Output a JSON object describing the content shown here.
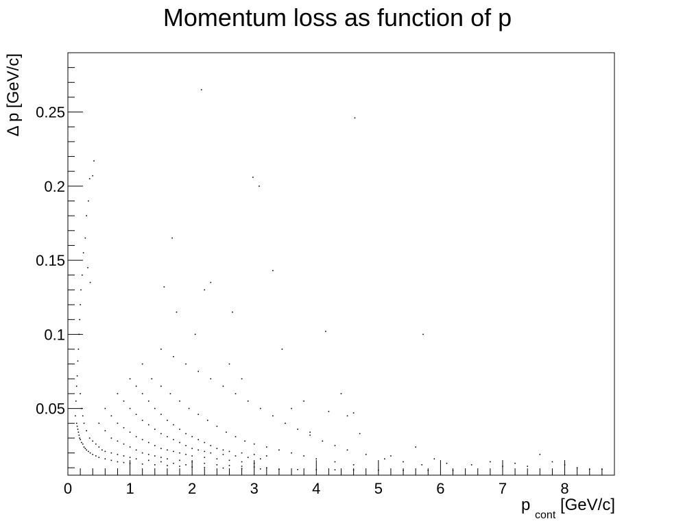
{
  "chart_data": {
    "type": "scatter",
    "title": "Momentum loss as function of p",
    "xlabel_main": "p",
    "xlabel_sub": "cont",
    "xlabel_unit": " [GeV/c]",
    "ylabel": "Δ p [GeV/c]",
    "xlim": [
      0,
      8.8
    ],
    "ylim": [
      0.005,
      0.29
    ],
    "grid": false,
    "legend": "none",
    "x_ticks": [
      {
        "value": 0,
        "label": "0"
      },
      {
        "value": 1,
        "label": "1"
      },
      {
        "value": 2,
        "label": "2"
      },
      {
        "value": 3,
        "label": "3"
      },
      {
        "value": 4,
        "label": "4"
      },
      {
        "value": 5,
        "label": "5"
      },
      {
        "value": 6,
        "label": "6"
      },
      {
        "value": 7,
        "label": "7"
      },
      {
        "value": 8,
        "label": "8"
      }
    ],
    "y_ticks": [
      {
        "value": 0.05,
        "label": "0.05"
      },
      {
        "value": 0.1,
        "label": "0.1"
      },
      {
        "value": 0.15,
        "label": "0.15"
      },
      {
        "value": 0.2,
        "label": "0.2"
      },
      {
        "value": 0.25,
        "label": "0.25"
      }
    ],
    "series": [
      {
        "marker_color": "#000000",
        "points": [
          [
            0.12,
            0.045
          ],
          [
            0.13,
            0.055
          ],
          [
            0.14,
            0.065
          ],
          [
            0.15,
            0.072
          ],
          [
            0.16,
            0.082
          ],
          [
            0.17,
            0.09
          ],
          [
            0.18,
            0.1
          ],
          [
            0.19,
            0.11
          ],
          [
            0.2,
            0.12
          ],
          [
            0.21,
            0.13
          ],
          [
            0.23,
            0.14
          ],
          [
            0.25,
            0.155
          ],
          [
            0.28,
            0.165
          ],
          [
            0.3,
            0.18
          ],
          [
            0.33,
            0.19
          ],
          [
            0.35,
            0.205
          ],
          [
            0.4,
            0.207
          ],
          [
            0.42,
            0.217
          ],
          [
            0.32,
            0.145
          ],
          [
            0.36,
            0.135
          ],
          [
            0.14,
            0.04
          ],
          [
            0.15,
            0.038
          ],
          [
            0.16,
            0.036
          ],
          [
            0.17,
            0.034
          ],
          [
            0.18,
            0.032
          ],
          [
            0.19,
            0.03
          ],
          [
            0.2,
            0.029
          ],
          [
            0.22,
            0.027
          ],
          [
            0.24,
            0.026
          ],
          [
            0.26,
            0.024
          ],
          [
            0.28,
            0.023
          ],
          [
            0.3,
            0.022
          ],
          [
            0.33,
            0.021
          ],
          [
            0.36,
            0.02
          ],
          [
            0.4,
            0.019
          ],
          [
            0.45,
            0.018
          ],
          [
            0.5,
            0.017
          ],
          [
            0.6,
            0.016
          ],
          [
            0.7,
            0.015
          ],
          [
            0.8,
            0.014
          ],
          [
            0.9,
            0.0135
          ],
          [
            1.0,
            0.013
          ],
          [
            1.2,
            0.0125
          ],
          [
            1.4,
            0.012
          ],
          [
            1.6,
            0.0115
          ],
          [
            1.8,
            0.011
          ],
          [
            2.0,
            0.0105
          ],
          [
            2.2,
            0.0102
          ],
          [
            2.5,
            0.0098
          ],
          [
            2.8,
            0.0095
          ],
          [
            3.1,
            0.0092
          ],
          [
            3.4,
            0.009
          ],
          [
            3.7,
            0.0088
          ],
          [
            4.0,
            0.0087
          ],
          [
            4.3,
            0.0086
          ],
          [
            4.6,
            0.0085
          ],
          [
            5.0,
            0.0084
          ],
          [
            5.4,
            0.0083
          ],
          [
            5.8,
            0.0082
          ],
          [
            6.2,
            0.0081
          ],
          [
            0.2,
            0.06
          ],
          [
            0.22,
            0.05
          ],
          [
            0.24,
            0.045
          ],
          [
            0.26,
            0.04
          ],
          [
            0.3,
            0.035
          ],
          [
            0.35,
            0.03
          ],
          [
            0.4,
            0.028
          ],
          [
            0.45,
            0.026
          ],
          [
            0.5,
            0.024
          ],
          [
            0.55,
            0.022
          ],
          [
            0.6,
            0.021
          ],
          [
            0.7,
            0.02
          ],
          [
            0.8,
            0.019
          ],
          [
            0.9,
            0.018
          ],
          [
            1.0,
            0.017
          ],
          [
            1.1,
            0.016
          ],
          [
            1.3,
            0.015
          ],
          [
            1.5,
            0.014
          ],
          [
            1.7,
            0.013
          ],
          [
            1.9,
            0.012
          ],
          [
            0.5,
            0.04
          ],
          [
            0.6,
            0.035
          ],
          [
            0.7,
            0.03
          ],
          [
            0.8,
            0.028
          ],
          [
            0.9,
            0.026
          ],
          [
            1.0,
            0.024
          ],
          [
            1.1,
            0.022
          ],
          [
            1.2,
            0.02
          ],
          [
            1.3,
            0.019
          ],
          [
            1.4,
            0.018
          ],
          [
            1.5,
            0.017
          ],
          [
            1.6,
            0.016
          ],
          [
            1.8,
            0.015
          ],
          [
            2.0,
            0.014
          ],
          [
            2.2,
            0.013
          ],
          [
            2.4,
            0.012
          ],
          [
            2.6,
            0.0115
          ],
          [
            2.8,
            0.011
          ],
          [
            3.0,
            0.0105
          ],
          [
            3.2,
            0.01
          ],
          [
            0.6,
            0.05
          ],
          [
            0.7,
            0.045
          ],
          [
            0.8,
            0.04
          ],
          [
            0.9,
            0.037
          ],
          [
            1.0,
            0.034
          ],
          [
            1.1,
            0.031
          ],
          [
            1.2,
            0.029
          ],
          [
            1.3,
            0.027
          ],
          [
            1.4,
            0.025
          ],
          [
            1.5,
            0.023
          ],
          [
            1.6,
            0.022
          ],
          [
            1.7,
            0.021
          ],
          [
            1.8,
            0.02
          ],
          [
            1.9,
            0.019
          ],
          [
            2.0,
            0.018
          ],
          [
            2.2,
            0.017
          ],
          [
            2.4,
            0.016
          ],
          [
            2.6,
            0.015
          ],
          [
            2.8,
            0.014
          ],
          [
            3.0,
            0.013
          ],
          [
            0.8,
            0.06
          ],
          [
            0.9,
            0.055
          ],
          [
            1.0,
            0.05
          ],
          [
            1.1,
            0.046
          ],
          [
            1.2,
            0.042
          ],
          [
            1.3,
            0.039
          ],
          [
            1.4,
            0.036
          ],
          [
            1.5,
            0.033
          ],
          [
            1.6,
            0.031
          ],
          [
            1.7,
            0.029
          ],
          [
            1.8,
            0.027
          ],
          [
            1.9,
            0.025
          ],
          [
            2.0,
            0.023
          ],
          [
            2.1,
            0.022
          ],
          [
            2.2,
            0.021
          ],
          [
            2.3,
            0.02
          ],
          [
            2.5,
            0.019
          ],
          [
            2.7,
            0.018
          ],
          [
            2.9,
            0.017
          ],
          [
            3.1,
            0.016
          ],
          [
            1.0,
            0.07
          ],
          [
            1.1,
            0.065
          ],
          [
            1.2,
            0.06
          ],
          [
            1.3,
            0.055
          ],
          [
            1.4,
            0.05
          ],
          [
            1.5,
            0.046
          ],
          [
            1.6,
            0.042
          ],
          [
            1.7,
            0.039
          ],
          [
            1.8,
            0.036
          ],
          [
            1.9,
            0.033
          ],
          [
            2.0,
            0.031
          ],
          [
            2.1,
            0.029
          ],
          [
            2.2,
            0.027
          ],
          [
            2.3,
            0.025
          ],
          [
            2.4,
            0.023
          ],
          [
            2.5,
            0.022
          ],
          [
            2.6,
            0.021
          ],
          [
            2.8,
            0.02
          ],
          [
            3.0,
            0.019
          ],
          [
            3.2,
            0.018
          ],
          [
            1.2,
            0.08
          ],
          [
            1.35,
            0.07
          ],
          [
            1.5,
            0.065
          ],
          [
            1.65,
            0.06
          ],
          [
            1.8,
            0.055
          ],
          [
            1.95,
            0.05
          ],
          [
            2.1,
            0.046
          ],
          [
            2.25,
            0.042
          ],
          [
            2.4,
            0.038
          ],
          [
            2.55,
            0.034
          ],
          [
            2.7,
            0.031
          ],
          [
            2.85,
            0.028
          ],
          [
            3.0,
            0.026
          ],
          [
            3.2,
            0.024
          ],
          [
            3.4,
            0.022
          ],
          [
            3.6,
            0.02
          ],
          [
            3.8,
            0.018
          ],
          [
            4.0,
            0.016
          ],
          [
            4.3,
            0.014
          ],
          [
            4.6,
            0.012
          ],
          [
            1.5,
            0.09
          ],
          [
            1.7,
            0.085
          ],
          [
            1.9,
            0.08
          ],
          [
            2.1,
            0.075
          ],
          [
            2.3,
            0.07
          ],
          [
            2.5,
            0.065
          ],
          [
            2.7,
            0.06
          ],
          [
            2.9,
            0.055
          ],
          [
            3.1,
            0.05
          ],
          [
            3.3,
            0.045
          ],
          [
            3.5,
            0.04
          ],
          [
            3.7,
            0.036
          ],
          [
            3.9,
            0.032
          ],
          [
            4.1,
            0.028
          ],
          [
            4.3,
            0.025
          ],
          [
            4.5,
            0.022
          ],
          [
            4.8,
            0.019
          ],
          [
            5.1,
            0.016
          ],
          [
            5.4,
            0.014
          ],
          [
            5.7,
            0.012
          ],
          [
            2.15,
            0.265
          ],
          [
            4.62,
            0.246
          ],
          [
            2.98,
            0.206
          ],
          [
            3.08,
            0.2
          ],
          [
            1.68,
            0.165
          ],
          [
            3.3,
            0.143
          ],
          [
            1.55,
            0.132
          ],
          [
            2.2,
            0.13
          ],
          [
            2.3,
            0.135
          ],
          [
            1.75,
            0.115
          ],
          [
            2.65,
            0.115
          ],
          [
            2.05,
            0.1
          ],
          [
            4.15,
            0.102
          ],
          [
            5.72,
            0.1
          ],
          [
            3.45,
            0.09
          ],
          [
            4.6,
            0.047
          ],
          [
            4.5,
            0.045
          ],
          [
            4.2,
            0.048
          ],
          [
            3.9,
            0.034
          ],
          [
            4.7,
            0.033
          ],
          [
            5.6,
            0.024
          ],
          [
            6.1,
            0.013
          ],
          [
            6.5,
            0.012
          ],
          [
            7.0,
            0.011
          ],
          [
            7.4,
            0.011
          ],
          [
            7.6,
            0.019
          ],
          [
            7.8,
            0.014
          ],
          [
            8.0,
            0.012
          ],
          [
            8.2,
            0.01
          ],
          [
            5.2,
            0.018
          ],
          [
            5.9,
            0.016
          ],
          [
            6.8,
            0.014
          ],
          [
            7.2,
            0.013
          ],
          [
            8.4,
            0.009
          ],
          [
            8.6,
            0.009
          ],
          [
            3.6,
            0.05
          ],
          [
            3.8,
            0.055
          ],
          [
            4.4,
            0.06
          ],
          [
            2.8,
            0.07
          ],
          [
            2.6,
            0.08
          ]
        ]
      }
    ]
  }
}
